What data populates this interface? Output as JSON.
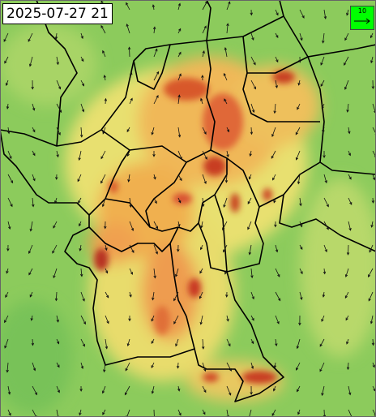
{
  "timestamp": "2025-07-27 21",
  "legend": {
    "label": 10
  }
}
